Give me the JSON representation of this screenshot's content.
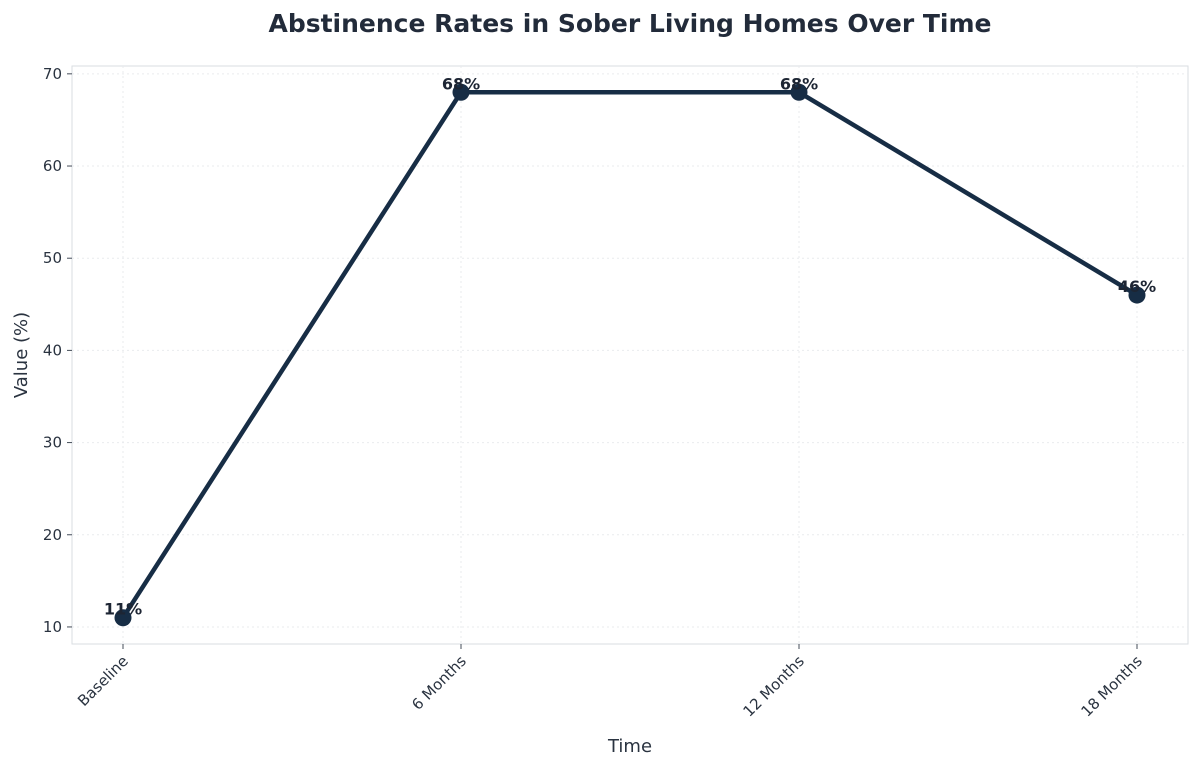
{
  "chart_data": {
    "type": "line",
    "title": "Abstinence Rates in Sober Living Homes Over Time",
    "xlabel": "Time",
    "ylabel": "Value (%)",
    "categories": [
      "Baseline",
      "6 Months",
      "12 Months",
      "18 Months"
    ],
    "series": [
      {
        "values": [
          11,
          68,
          68,
          46
        ],
        "color": "#172d45"
      }
    ],
    "data_labels": [
      "11%",
      "68%",
      "68%",
      "46%"
    ],
    "ylim": [
      8.15,
      70.85
    ],
    "yticks": [
      10,
      20,
      30,
      40,
      50,
      60,
      70
    ],
    "grid": true,
    "legend": "none"
  }
}
